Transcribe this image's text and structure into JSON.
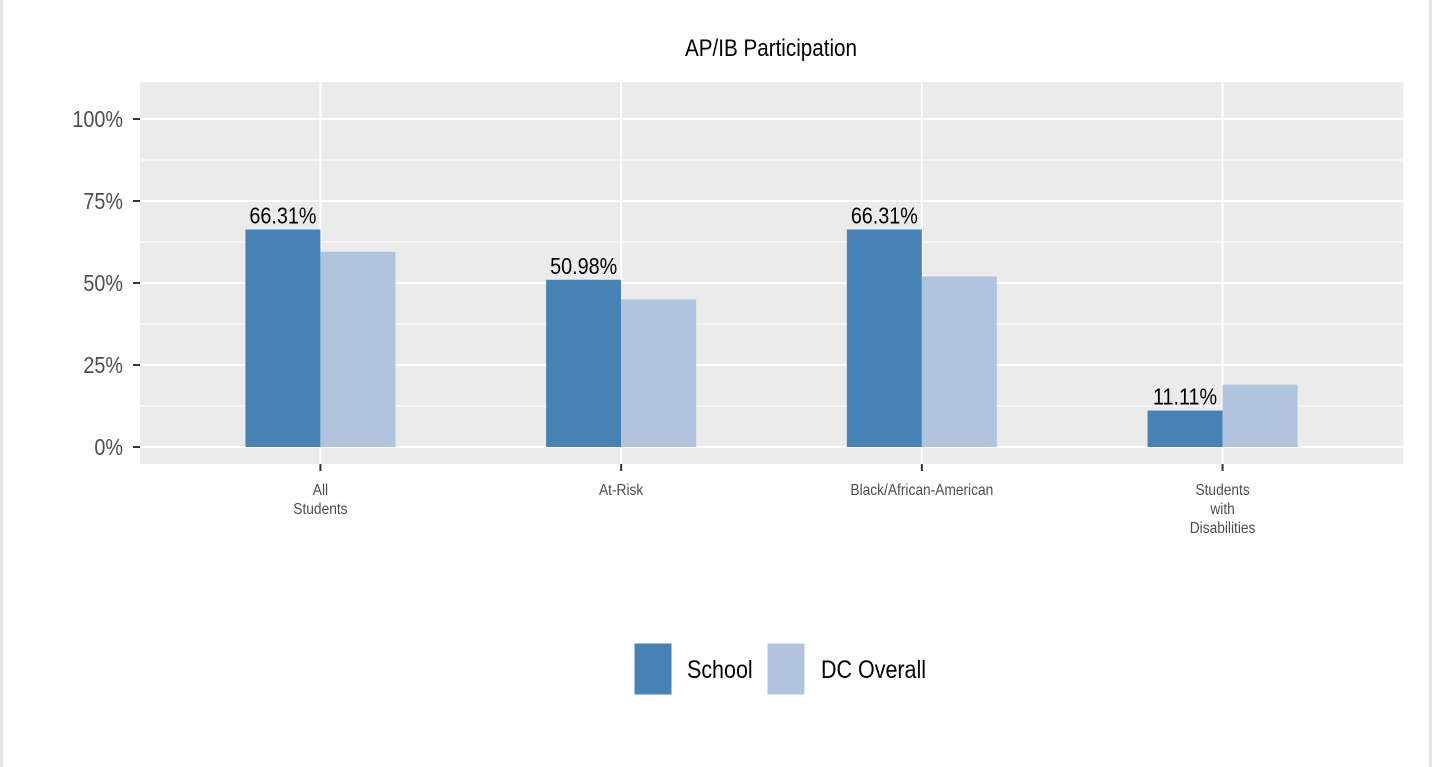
{
  "chart_data": {
    "type": "bar",
    "title": "AP/IB Participation",
    "xlabel": "",
    "ylabel": "",
    "categories": [
      [
        "All",
        "Students"
      ],
      [
        "At-Risk"
      ],
      [
        "Black/African-American"
      ],
      [
        "Students",
        "with",
        "Disabilities"
      ]
    ],
    "series": [
      {
        "name": "School",
        "color": "#4682b4",
        "values": [
          66.31,
          50.98,
          66.31,
          11.11
        ],
        "labels": [
          "66.31%",
          "50.98%",
          "66.31%",
          "11.11%"
        ]
      },
      {
        "name": "DC Overall",
        "color": "#b0c4de",
        "values": [
          59.5,
          45,
          52,
          19
        ]
      }
    ],
    "ylim": [
      -5,
      110
    ],
    "yticks": [
      0,
      25,
      50,
      75,
      100
    ],
    "ytick_labels": [
      "0%",
      "25%",
      "50%",
      "75%",
      "100%"
    ],
    "grid": true,
    "panel_color": "#ebebeb",
    "legend_position": "bottom"
  }
}
